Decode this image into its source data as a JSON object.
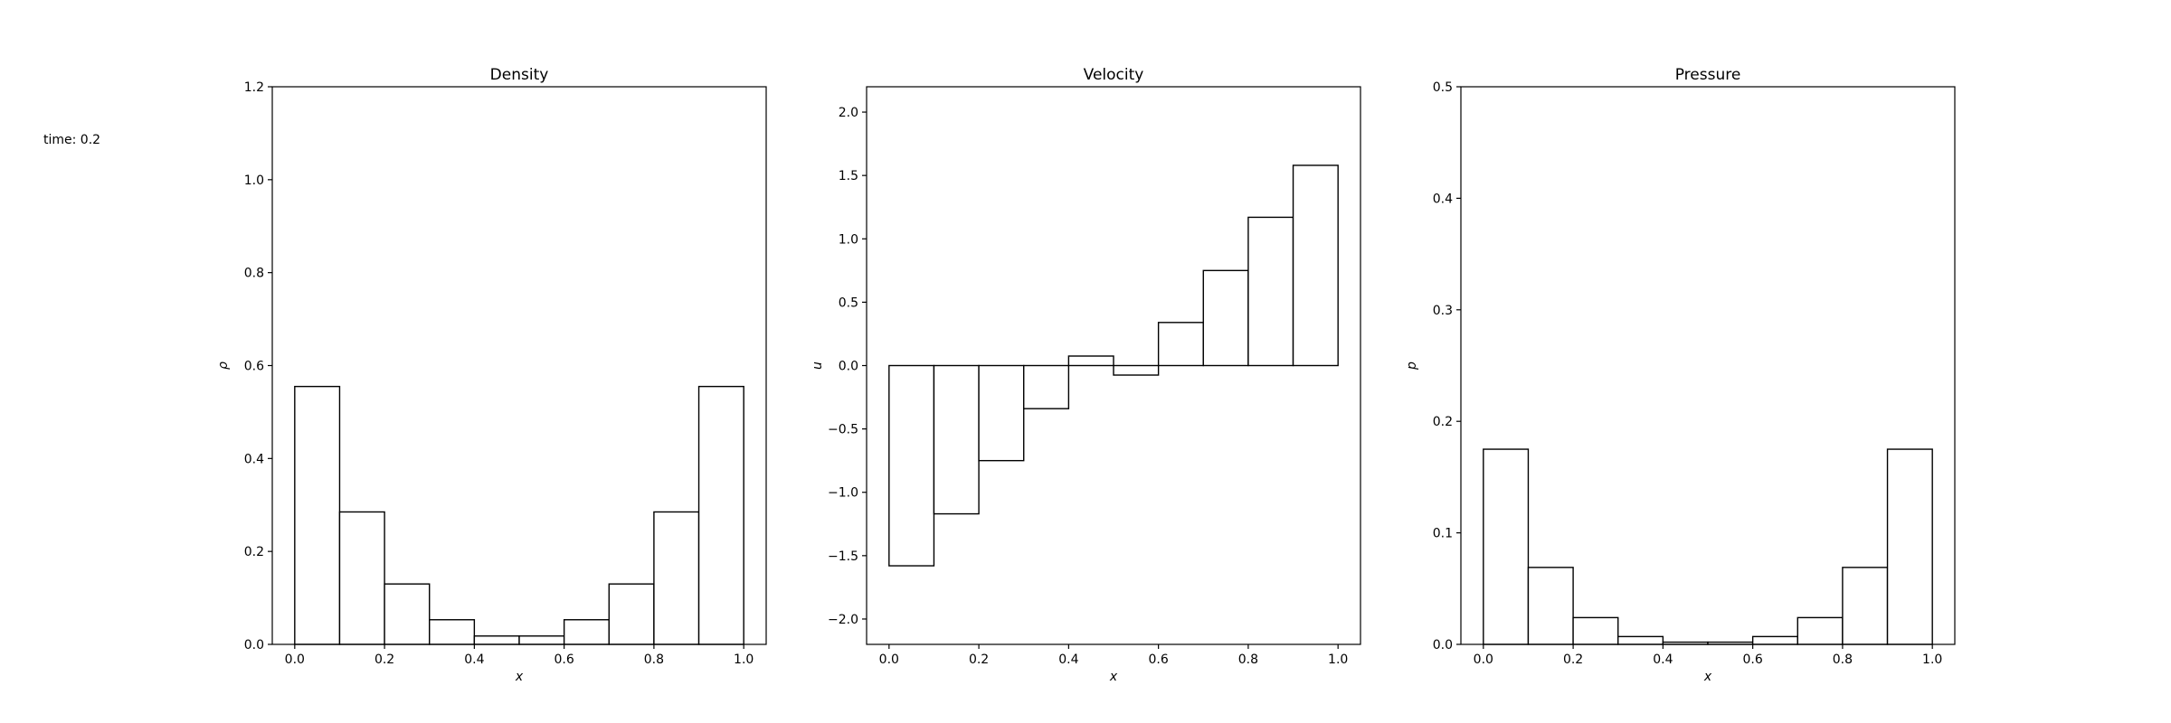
{
  "time_label": "time: 0.2",
  "chart_data": [
    {
      "type": "bar",
      "title": "Density",
      "xlabel": "x",
      "ylabel": "ρ",
      "xlim": [
        -0.05,
        1.05
      ],
      "ylim": [
        0,
        1.2
      ],
      "bin_edges": [
        0.0,
        0.1,
        0.2,
        0.3,
        0.4,
        0.5,
        0.6,
        0.7,
        0.8,
        0.9,
        1.0
      ],
      "values": [
        0.555,
        0.285,
        0.13,
        0.053,
        0.018,
        0.018,
        0.053,
        0.13,
        0.285,
        0.555
      ],
      "xticks": [
        0.0,
        0.2,
        0.4,
        0.6,
        0.8,
        1.0
      ],
      "xtick_labels": [
        "0.0",
        "0.2",
        "0.4",
        "0.6",
        "0.8",
        "1.0"
      ],
      "yticks": [
        0.0,
        0.2,
        0.4,
        0.6,
        0.8,
        1.0,
        1.2
      ],
      "ytick_labels": [
        "0.0",
        "0.2",
        "0.4",
        "0.6",
        "0.8",
        "1.0",
        "1.2"
      ],
      "grid": false
    },
    {
      "type": "bar",
      "title": "Velocity",
      "xlabel": "x",
      "ylabel": "u",
      "xlim": [
        -0.05,
        1.05
      ],
      "ylim": [
        -2.2,
        2.2
      ],
      "bin_edges": [
        0.0,
        0.1,
        0.2,
        0.3,
        0.4,
        0.5,
        0.6,
        0.7,
        0.8,
        0.9,
        1.0
      ],
      "values": [
        -1.58,
        -1.17,
        -0.75,
        -0.34,
        0.075,
        -0.075,
        0.34,
        0.75,
        1.17,
        1.58
      ],
      "xticks": [
        0.0,
        0.2,
        0.4,
        0.6,
        0.8,
        1.0
      ],
      "xtick_labels": [
        "0.0",
        "0.2",
        "0.4",
        "0.6",
        "0.8",
        "1.0"
      ],
      "yticks": [
        -2.0,
        -1.5,
        -1.0,
        -0.5,
        0.0,
        0.5,
        1.0,
        1.5,
        2.0
      ],
      "ytick_labels": [
        "−2.0",
        "−1.5",
        "−1.0",
        "−0.5",
        "0.0",
        "0.5",
        "1.0",
        "1.5",
        "2.0"
      ],
      "grid": false
    },
    {
      "type": "bar",
      "title": "Pressure",
      "xlabel": "x",
      "ylabel": "p",
      "xlim": [
        -0.05,
        1.05
      ],
      "ylim": [
        0,
        0.5
      ],
      "bin_edges": [
        0.0,
        0.1,
        0.2,
        0.3,
        0.4,
        0.5,
        0.6,
        0.7,
        0.8,
        0.9,
        1.0
      ],
      "values": [
        0.175,
        0.069,
        0.024,
        0.007,
        0.002,
        0.002,
        0.007,
        0.024,
        0.069,
        0.175
      ],
      "xticks": [
        0.0,
        0.2,
        0.4,
        0.6,
        0.8,
        1.0
      ],
      "xtick_labels": [
        "0.0",
        "0.2",
        "0.4",
        "0.6",
        "0.8",
        "1.0"
      ],
      "yticks": [
        0.0,
        0.1,
        0.2,
        0.3,
        0.4,
        0.5
      ],
      "ytick_labels": [
        "0.0",
        "0.1",
        "0.2",
        "0.3",
        "0.4",
        "0.5"
      ],
      "grid": false
    }
  ]
}
